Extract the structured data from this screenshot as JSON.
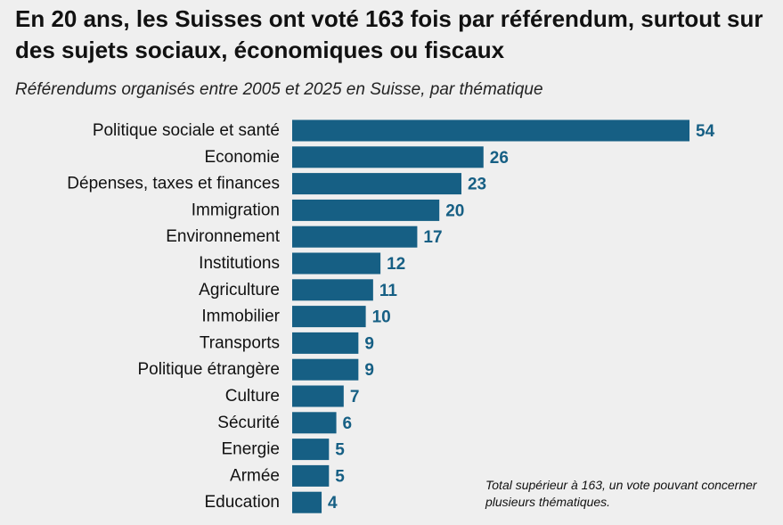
{
  "chart_data": {
    "type": "bar",
    "orientation": "horizontal",
    "title": "En 20 ans, les Suisses ont voté 163 fois par référendum, surtout sur des sujets sociaux, économiques ou fiscaux",
    "subtitle": "Référendums organisés entre 2005 et 2025 en Suisse, par thématique",
    "categories": [
      "Politique sociale et santé",
      "Economie",
      "Dépenses, taxes et finances",
      "Immigration",
      "Environnement",
      "Institutions",
      "Agriculture",
      "Immobilier",
      "Transports",
      "Politique étrangère",
      "Culture",
      "Sécurité",
      "Energie",
      "Armée",
      "Education"
    ],
    "values": [
      54,
      26,
      23,
      20,
      17,
      12,
      11,
      10,
      9,
      9,
      7,
      6,
      5,
      5,
      4
    ],
    "bar_color": "#165f84",
    "value_label_color": "#165f84",
    "grid": false,
    "annotation": "Total supérieur à 163, un vote pouvant concerner plusieurs thématiques."
  }
}
